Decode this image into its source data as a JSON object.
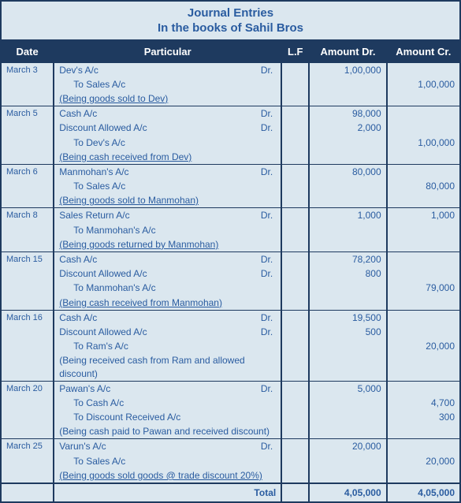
{
  "title": "Journal Entries",
  "subtitle": "In the books of Sahil Bros",
  "headers": {
    "date": "Date",
    "particular": "Particular",
    "lf": "L.F",
    "dr": "Amount Dr.",
    "cr": "Amount Cr."
  },
  "dr_label": "Dr.",
  "entries": [
    {
      "date": "March 3",
      "lines": [
        {
          "text": "Dev's A/c",
          "dr": true,
          "amt_dr": "1,00,000",
          "amt_cr": ""
        },
        {
          "text": "To Sales A/c",
          "indent": true,
          "amt_dr": "",
          "amt_cr": "1,00,000"
        },
        {
          "text": "(Being goods sold to Dev)",
          "narr": true
        }
      ]
    },
    {
      "date": "March 5",
      "lines": [
        {
          "text": "Cash A/c",
          "dr": true,
          "amt_dr": "98,000",
          "amt_cr": ""
        },
        {
          "text": "Discount Allowed A/c",
          "dr": true,
          "amt_dr": "2,000",
          "amt_cr": ""
        },
        {
          "text": "To Dev's A/c",
          "indent": true,
          "amt_dr": "",
          "amt_cr": "1,00,000"
        },
        {
          "text": "(Being cash received from Dev)",
          "narr": true
        }
      ]
    },
    {
      "date": "March 6",
      "lines": [
        {
          "text": "Manmohan's A/c",
          "dr": true,
          "amt_dr": "80,000",
          "amt_cr": ""
        },
        {
          "text": "To Sales A/c",
          "indent": true,
          "amt_dr": "",
          "amt_cr": "80,000"
        },
        {
          "text": "(Being goods sold to Manmohan)",
          "narr": true
        }
      ]
    },
    {
      "date": "March 8",
      "lines": [
        {
          "text": "Sales Return A/c",
          "dr": true,
          "amt_dr": "1,000",
          "amt_cr": "1,000"
        },
        {
          "text": "To Manmohan's A/c",
          "indent": true,
          "amt_dr": "",
          "amt_cr": ""
        },
        {
          "text": "(Being goods returned by Manmohan)",
          "narr": true
        }
      ]
    },
    {
      "date": "March 15",
      "lines": [
        {
          "text": "Cash A/c",
          "dr": true,
          "amt_dr": "78,200",
          "amt_cr": ""
        },
        {
          "text": "Discount Allowed A/c",
          "dr": true,
          "amt_dr": "800",
          "amt_cr": ""
        },
        {
          "text": "To Manmohan's A/c",
          "indent": true,
          "amt_dr": "",
          "amt_cr": "79,000"
        },
        {
          "text": "(Being cash received from Manmohan)",
          "narr": true
        }
      ]
    },
    {
      "date": "March 16",
      "lines": [
        {
          "text": "Cash A/c",
          "dr": true,
          "amt_dr": "19,500",
          "amt_cr": ""
        },
        {
          "text": "Discount Allowed A/c",
          "dr": true,
          "amt_dr": "500",
          "amt_cr": ""
        },
        {
          "text": "To Ram's A/c",
          "indent": true,
          "amt_dr": "",
          "amt_cr": "20,000"
        },
        {
          "text": "(Being received cash from Ram and allowed discount)",
          "narr": false
        }
      ]
    },
    {
      "date": "March 20",
      "lines": [
        {
          "text": "Pawan's A/c",
          "dr": true,
          "amt_dr": "5,000",
          "amt_cr": ""
        },
        {
          "text": "To Cash A/c",
          "indent": true,
          "amt_dr": "",
          "amt_cr": "4,700"
        },
        {
          "text": "To Discount Received A/c",
          "indent": true,
          "amt_dr": "",
          "amt_cr": "300"
        },
        {
          "text": "(Being cash paid to Pawan and received discount)",
          "narr": false
        }
      ]
    },
    {
      "date": "March 25",
      "lines": [
        {
          "text": "Varun's A/c",
          "dr": true,
          "amt_dr": "20,000",
          "amt_cr": ""
        },
        {
          "text": "To Sales A/c",
          "indent": true,
          "amt_dr": "",
          "amt_cr": "20,000"
        },
        {
          "text": "(Being goods sold goods @ trade discount 20%)",
          "narr": true
        }
      ]
    }
  ],
  "total": {
    "label": "Total",
    "dr": "4,05,000",
    "cr": "4,05,000"
  },
  "colors": {
    "bg": "#dbe7ef",
    "header_bg": "#1e3a5f",
    "text": "#2a5ca0",
    "border": "#1e3a5f"
  }
}
